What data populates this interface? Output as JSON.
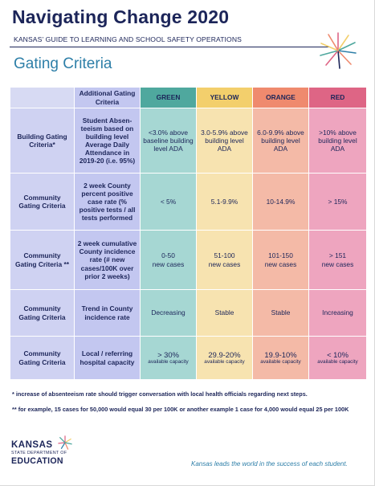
{
  "header": {
    "title": "Navigating Change 2020",
    "subtitle": "KANSAS’ GUIDE TO LEARNING AND SCHOOL SAFETY OPERATIONS",
    "section_title": "Gating Criteria"
  },
  "table": {
    "headers": {
      "additional": "Additional Gating Criteria",
      "green": "GREEN",
      "yellow": "YELLOW",
      "orange": "ORANGE",
      "red": "RED"
    },
    "rows": [
      {
        "label": "Building Gating Criteria*",
        "additional": "Student Absen-teeism based on building level Average Daily Attendance in 2019-20 (i.e. 95%)",
        "green": "<3.0% above baseline building level ADA",
        "yellow": "3.0-5.9% above building level ADA",
        "orange": "6.0-9.9% above building level ADA",
        "red": ">10% above building level ADA"
      },
      {
        "label": "Community Gating Criteria",
        "additional": "2 week County percent positive case rate (% positive tests / all tests performed",
        "green": "< 5%",
        "yellow": "5.1-9.9%",
        "orange": "10-14.9%",
        "red": "> 15%"
      },
      {
        "label": "Community Gating Criteria **",
        "additional": "2 week cumulative County incidence rate (# new cases/100K over prior 2 weeks)",
        "green": "0-50",
        "green_sub": "new cases",
        "yellow": "51-100",
        "yellow_sub": "new cases",
        "orange": "101-150",
        "orange_sub": "new cases",
        "red": "> 151",
        "red_sub": "new cases"
      },
      {
        "label": "Community Gating Criteria",
        "additional": "Trend in County incidence rate",
        "green": "Decreasing",
        "yellow": "Stable",
        "orange": "Stable",
        "red": "Increasing"
      },
      {
        "label": "Community Gating Criteria",
        "additional": "Local / referring hospital capacity",
        "green": "> 30%",
        "green_sub": "available capacity",
        "yellow": "29.9-20%",
        "yellow_sub": "available capacity",
        "orange": "19.9-10%",
        "orange_sub": "available capacity",
        "red": "< 10%",
        "red_sub": "available capacity"
      }
    ]
  },
  "footnotes": {
    "note1": "* increase of absenteeism rate should trigger conversation with local health officials regarding next steps.",
    "note2": "** for example, 15 cases for 50,000 would equal 30 per 100K or another example 1 case for 4,000 would equal 25 per 100K"
  },
  "footer": {
    "logo_line1": "KANSAS",
    "logo_line2": "STATE DEPARTMENT OF",
    "logo_line3": "EDUCATION",
    "tagline": "Kansas leads the world in the success of each student."
  },
  "colors": {
    "navy": "#1c2559",
    "teal_title": "#2e7fa8",
    "green_header": "#4fa89e",
    "yellow_header": "#f3cf6c",
    "orange_header": "#ef8a6e",
    "red_header": "#de6585"
  },
  "icons": [
    "starburst-icon",
    "kansas-star-icon"
  ]
}
